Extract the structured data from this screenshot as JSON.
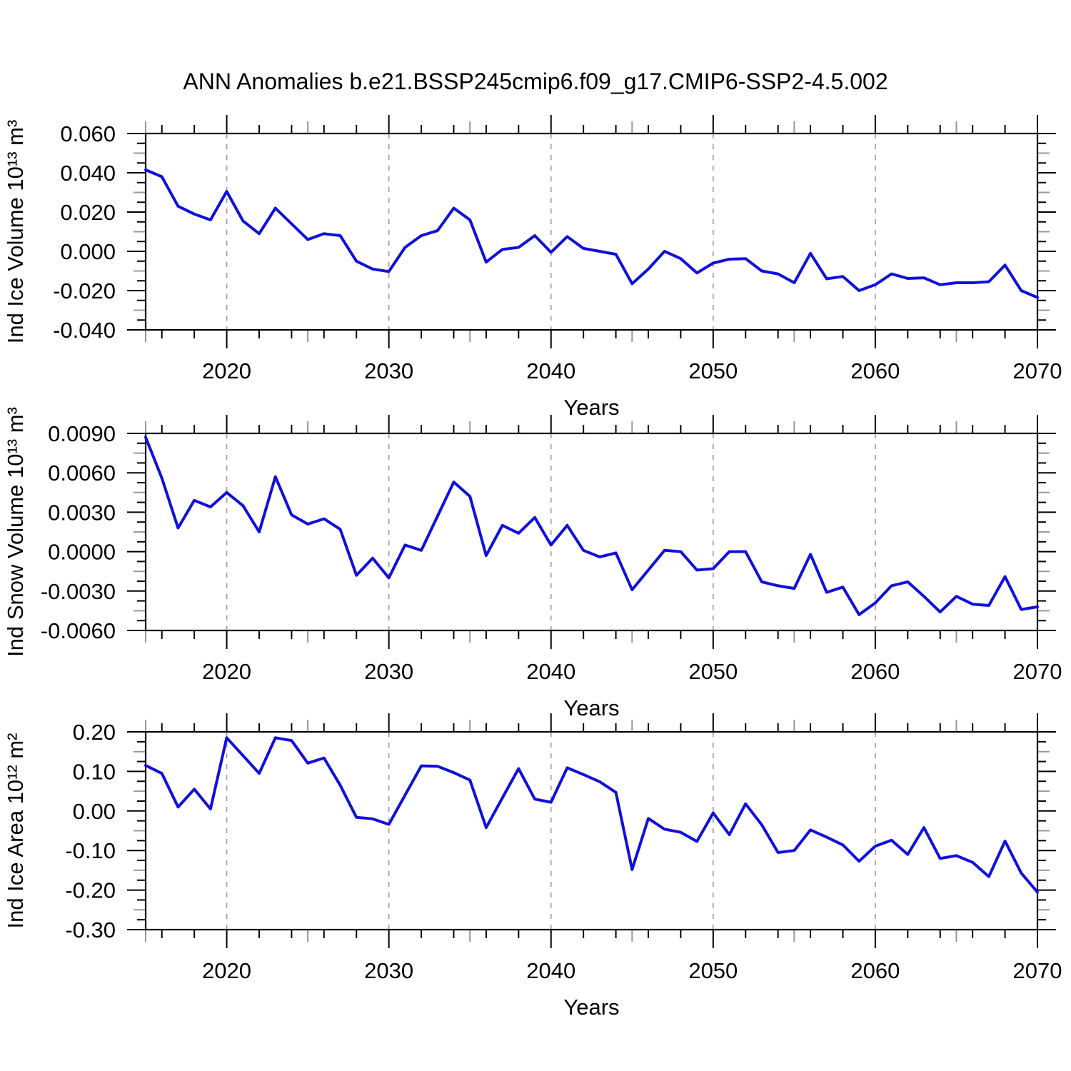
{
  "header": {
    "title": "ANN Anomalies b.e21.BSSP245cmip6.f09_g17.CMIP6-SSP2-4.5.002"
  },
  "style": {
    "line_color": "#1010dd",
    "frame_color": "#000000",
    "grid_color": "#999999",
    "medium_tick_color": "#999999",
    "background": "#ffffff"
  },
  "chart_data": [
    {
      "type": "line",
      "name": "ind-ice-volume",
      "ylabel": "Ind Ice Volume 10¹³ m³",
      "xlabel": "Years",
      "xlim": [
        2015,
        2070
      ],
      "xticks": [
        2020,
        2030,
        2040,
        2050,
        2060,
        2070
      ],
      "grid_years": [
        2020,
        2030,
        2040,
        2050,
        2060
      ],
      "ylim": [
        -0.04,
        0.06
      ],
      "yticks": [
        0.06,
        0.04,
        0.02,
        0.0,
        -0.02,
        -0.04
      ],
      "ytick_labels": [
        "0.060",
        "0.040",
        "0.020",
        "0.000",
        "-0.020",
        "-0.040"
      ],
      "years": [
        2015,
        2016,
        2017,
        2018,
        2019,
        2020,
        2021,
        2022,
        2023,
        2024,
        2025,
        2026,
        2027,
        2028,
        2029,
        2030,
        2031,
        2032,
        2033,
        2034,
        2035,
        2036,
        2037,
        2038,
        2039,
        2040,
        2041,
        2042,
        2043,
        2044,
        2045,
        2046,
        2047,
        2048,
        2049,
        2050,
        2051,
        2052,
        2053,
        2054,
        2055,
        2056,
        2057,
        2058,
        2059,
        2060,
        2061,
        2062,
        2063,
        2064,
        2065,
        2066,
        2067,
        2068,
        2069,
        2070
      ],
      "values": [
        0.0415,
        0.038,
        0.023,
        0.019,
        0.016,
        0.0305,
        0.0155,
        0.009,
        0.022,
        0.014,
        0.006,
        0.009,
        0.008,
        -0.005,
        -0.009,
        -0.0103,
        0.002,
        0.008,
        0.0105,
        0.022,
        0.016,
        -0.0055,
        0.001,
        0.002,
        0.008,
        -0.0005,
        0.0075,
        0.0015,
        0.0,
        -0.0015,
        -0.0165,
        -0.009,
        0.0,
        -0.0037,
        -0.011,
        -0.006,
        -0.004,
        -0.0037,
        -0.01,
        -0.0115,
        -0.016,
        -0.001,
        -0.014,
        -0.0128,
        -0.02,
        -0.017,
        -0.0115,
        -0.0138,
        -0.0135,
        -0.017,
        -0.016,
        -0.016,
        -0.0155,
        -0.007,
        -0.02,
        -0.0235
      ]
    },
    {
      "type": "line",
      "name": "ind-snow-volume",
      "ylabel": "Ind Snow Volume 10¹³ m³",
      "xlabel": "Years",
      "xlim": [
        2015,
        2070
      ],
      "xticks": [
        2020,
        2030,
        2040,
        2050,
        2060,
        2070
      ],
      "grid_years": [
        2020,
        2030,
        2040,
        2050,
        2060
      ],
      "ylim": [
        -0.006,
        0.009
      ],
      "yticks": [
        0.009,
        0.006,
        0.003,
        0.0,
        -0.003,
        -0.006
      ],
      "ytick_labels": [
        "0.0090",
        "0.0060",
        "0.0030",
        "0.0000",
        "-0.0030",
        "-0.0060"
      ],
      "years": [
        2015,
        2016,
        2017,
        2018,
        2019,
        2020,
        2021,
        2022,
        2023,
        2024,
        2025,
        2026,
        2027,
        2028,
        2029,
        2030,
        2031,
        2032,
        2033,
        2034,
        2035,
        2036,
        2037,
        2038,
        2039,
        2040,
        2041,
        2042,
        2043,
        2044,
        2045,
        2046,
        2047,
        2048,
        2049,
        2050,
        2051,
        2052,
        2053,
        2054,
        2055,
        2056,
        2057,
        2058,
        2059,
        2060,
        2061,
        2062,
        2063,
        2064,
        2065,
        2066,
        2067,
        2068,
        2069,
        2070
      ],
      "values": [
        0.0087,
        0.0056,
        0.0018,
        0.0039,
        0.0034,
        0.0045,
        0.0035,
        0.0015,
        0.0057,
        0.0028,
        0.0021,
        0.0025,
        0.0017,
        -0.0018,
        -0.0005,
        -0.002,
        0.0005,
        0.0001,
        0.0027,
        0.0053,
        0.0042,
        -0.0003,
        0.002,
        0.0014,
        0.0026,
        0.0005,
        0.002,
        0.0001,
        -0.0004,
        -0.0001,
        -0.0029,
        -0.0014,
        0.0001,
        0.0,
        -0.0014,
        -0.0013,
        0.0,
        0.0,
        -0.0023,
        -0.0026,
        -0.0028,
        -0.0002,
        -0.0031,
        -0.0027,
        -0.0048,
        -0.0039,
        -0.0026,
        -0.0023,
        -0.0034,
        -0.0046,
        -0.0034,
        -0.004,
        -0.0041,
        -0.0019,
        -0.0044,
        -0.0042
      ]
    },
    {
      "type": "line",
      "name": "ind-ice-area",
      "ylabel": "Ind Ice Area 10¹² m²",
      "xlabel": "Years",
      "xlim": [
        2015,
        2070
      ],
      "xticks": [
        2020,
        2030,
        2040,
        2050,
        2060,
        2070
      ],
      "grid_years": [
        2020,
        2030,
        2040,
        2050,
        2060
      ],
      "ylim": [
        -0.3,
        0.2
      ],
      "yticks": [
        0.2,
        0.1,
        0.0,
        -0.1,
        -0.2,
        -0.3
      ],
      "ytick_labels": [
        "0.20",
        "0.10",
        "0.00",
        "-0.10",
        "-0.20",
        "-0.30"
      ],
      "years": [
        2015,
        2016,
        2017,
        2018,
        2019,
        2020,
        2021,
        2022,
        2023,
        2024,
        2025,
        2026,
        2027,
        2028,
        2029,
        2030,
        2031,
        2032,
        2033,
        2034,
        2035,
        2036,
        2037,
        2038,
        2039,
        2040,
        2041,
        2042,
        2043,
        2044,
        2045,
        2046,
        2047,
        2048,
        2049,
        2050,
        2051,
        2052,
        2053,
        2054,
        2055,
        2056,
        2057,
        2058,
        2059,
        2060,
        2061,
        2062,
        2063,
        2064,
        2065,
        2066,
        2067,
        2068,
        2069,
        2070
      ],
      "values": [
        0.115,
        0.095,
        0.01,
        0.055,
        0.005,
        0.185,
        0.14,
        0.095,
        0.185,
        0.178,
        0.121,
        0.134,
        0.065,
        -0.016,
        -0.02,
        -0.034,
        0.04,
        0.114,
        0.113,
        0.097,
        0.078,
        -0.042,
        0.033,
        0.107,
        0.03,
        0.022,
        0.109,
        0.092,
        0.074,
        0.047,
        -0.148,
        -0.019,
        -0.046,
        -0.054,
        -0.077,
        -0.005,
        -0.06,
        0.018,
        -0.035,
        -0.105,
        -0.1,
        -0.048,
        -0.066,
        -0.086,
        -0.127,
        -0.089,
        -0.074,
        -0.11,
        -0.042,
        -0.12,
        -0.113,
        -0.13,
        -0.166,
        -0.076,
        -0.157,
        -0.205
      ]
    }
  ]
}
